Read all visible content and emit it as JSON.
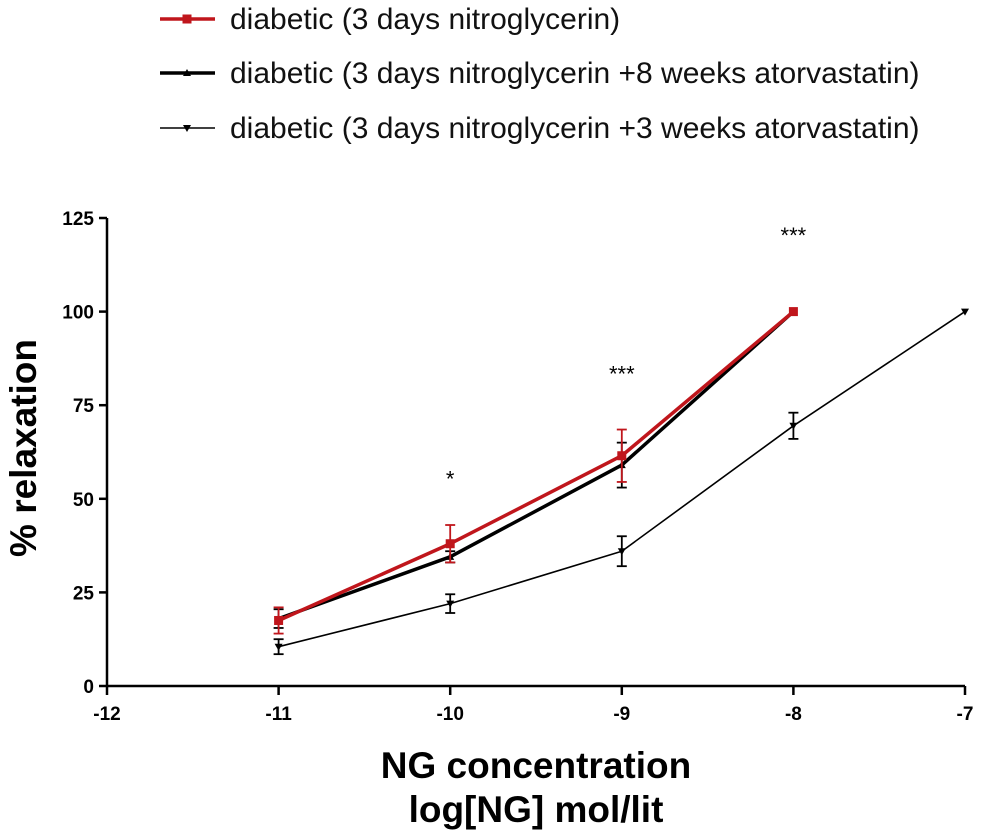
{
  "chart_data": {
    "type": "line",
    "title": "",
    "xlabel": "NG concentration",
    "xlabel_line2": "log[NG] mol/lit",
    "ylabel": "% relaxation",
    "xlim": [
      -12,
      -7
    ],
    "ylim": [
      0,
      125
    ],
    "xticks": [
      -12,
      -11,
      -10,
      -9,
      -8,
      -7
    ],
    "yticks": [
      0,
      25,
      50,
      75,
      100,
      125
    ],
    "xtick_labels": [
      "-12",
      "-11",
      "-10",
      "-9",
      "-8",
      "-7"
    ],
    "ytick_labels": [
      "0",
      "25",
      "50",
      "75",
      "100",
      "125"
    ],
    "grid": false,
    "legend_position": "top",
    "series": [
      {
        "name": "diabetic (3 days nitroglycerin)",
        "color": "#c0161c",
        "marker": "square",
        "x": [
          -11,
          -10,
          -9,
          -8
        ],
        "y": [
          17.5,
          38,
          61.5,
          100
        ],
        "err": [
          3.5,
          5,
          7,
          0
        ]
      },
      {
        "name": "diabetic (3 days nitroglycerin +8 weeks atorvastatin)",
        "color": "#000000",
        "marker": "triangle-up",
        "x": [
          -11,
          -10,
          -9,
          -8
        ],
        "y": [
          18,
          34.5,
          59,
          100
        ],
        "err": [
          2.5,
          1.5,
          6,
          0
        ]
      },
      {
        "name": "diabetic (3 days nitroglycerin +3 weeks atorvastatin)",
        "color": "#000000",
        "marker": "triangle-down",
        "x": [
          -11,
          -10,
          -9,
          -8,
          -7
        ],
        "y": [
          10.5,
          22,
          36,
          69.5,
          100
        ],
        "err": [
          2,
          2.5,
          4,
          3.5,
          0
        ]
      }
    ],
    "annotations": [
      {
        "text": "*",
        "x": -10,
        "y": 56
      },
      {
        "text": "***",
        "x": -9,
        "y": 84
      },
      {
        "text": "***",
        "x": -8,
        "y": 121
      }
    ]
  }
}
